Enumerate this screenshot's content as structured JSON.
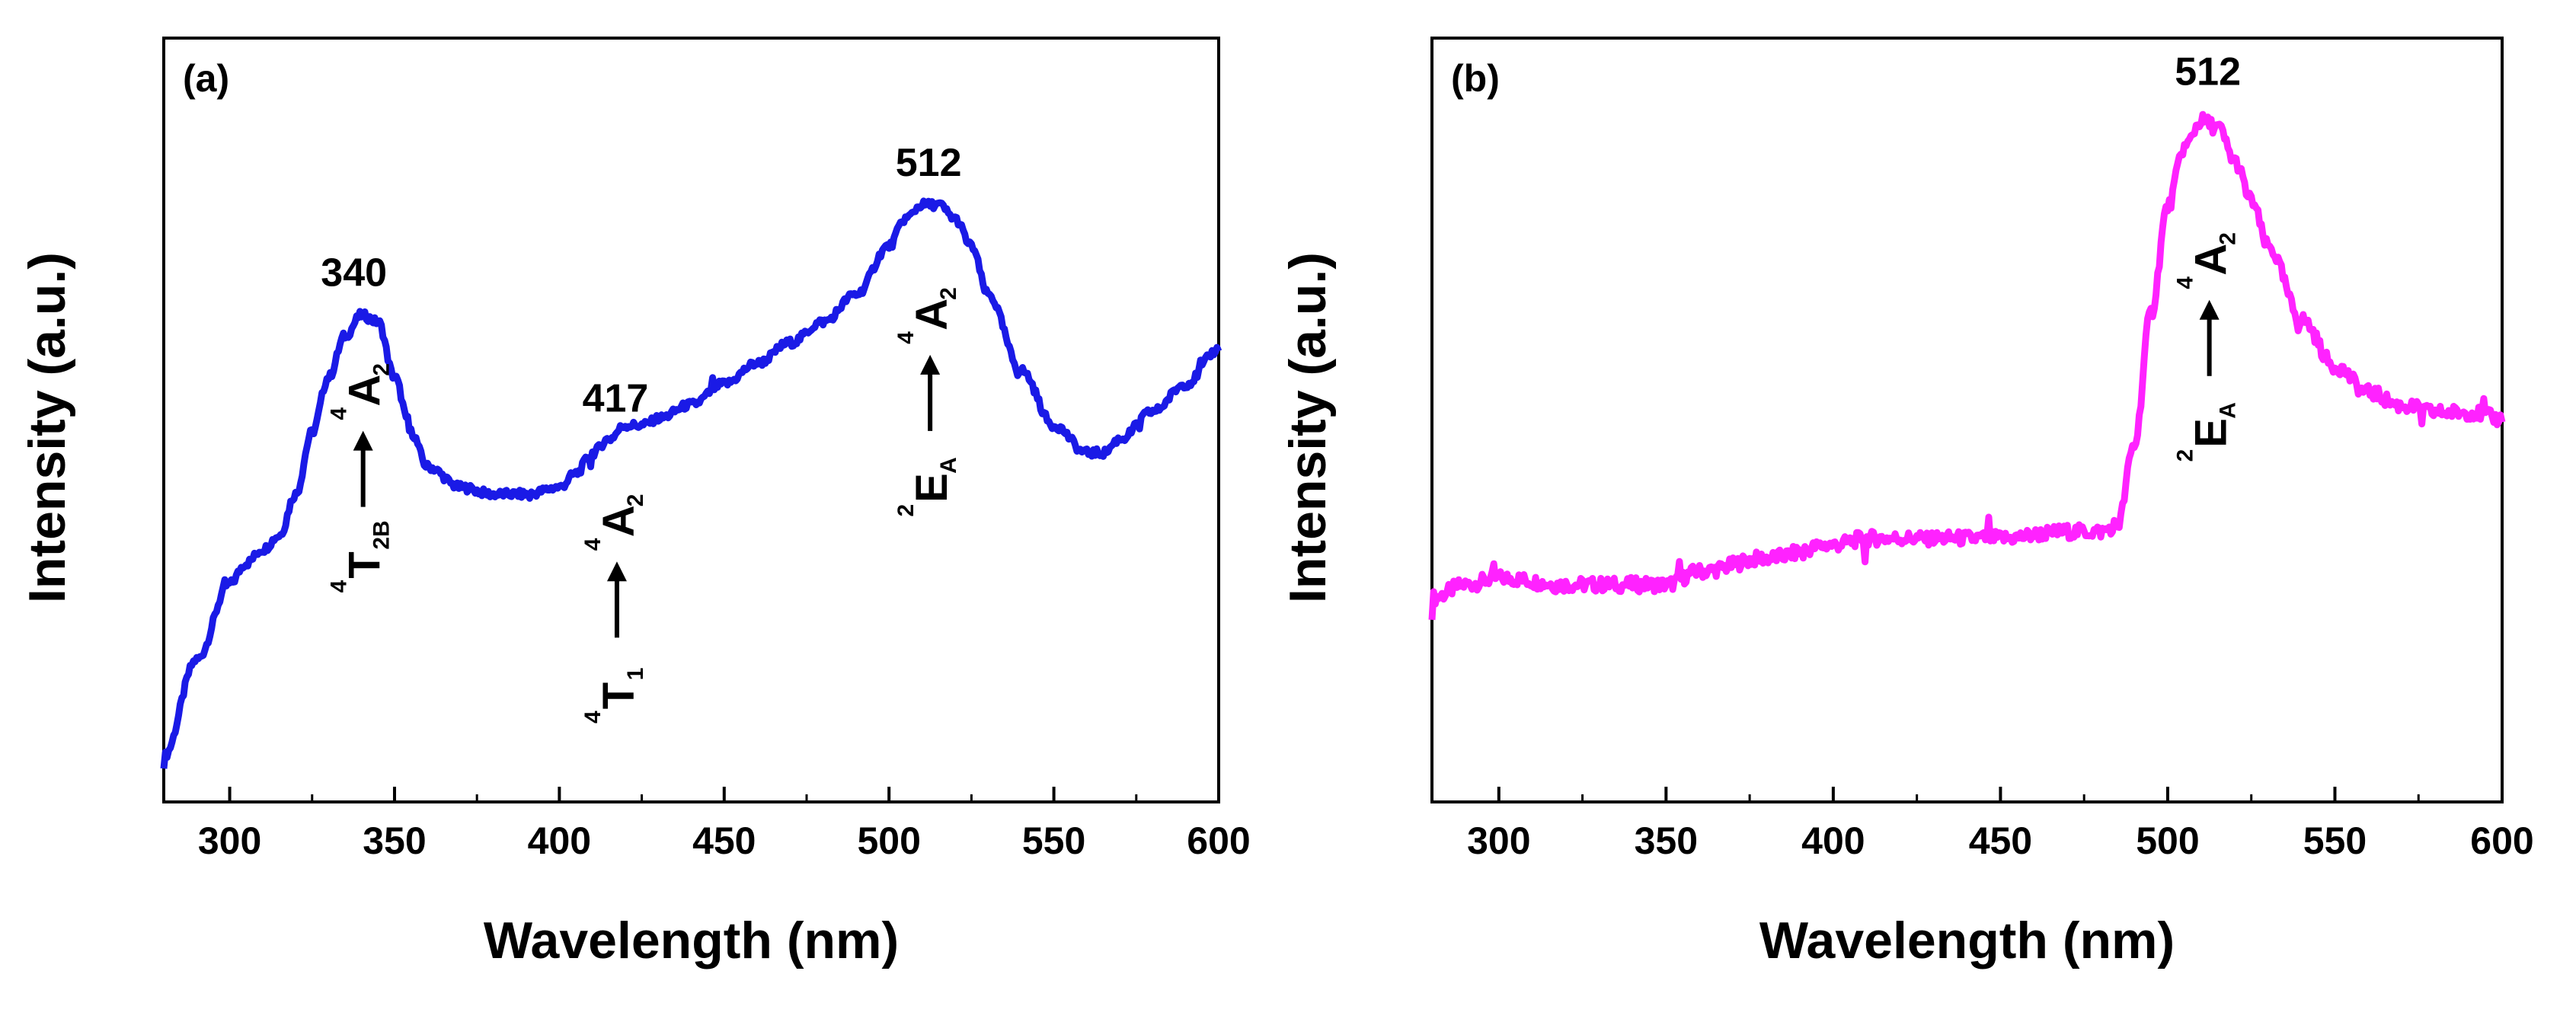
{
  "chart_data": [
    {
      "type": "line",
      "panel_label": "(a)",
      "xlabel": "Wavelength (nm)",
      "ylabel": "Intensity (a.u.)",
      "xlim": [
        280,
        600
      ],
      "ylim": [
        0,
        1.0
      ],
      "xticks": [
        300,
        350,
        400,
        450,
        500,
        550,
        600
      ],
      "yticks_shown": false,
      "series": [
        {
          "name": "spectrum-a",
          "color": "#1a1ae6",
          "x": [
            280,
            290,
            300,
            305,
            310,
            315,
            320,
            325,
            330,
            335,
            340,
            345,
            350,
            355,
            360,
            370,
            380,
            390,
            400,
            405,
            410,
            415,
            420,
            425,
            430,
            440,
            450,
            460,
            470,
            480,
            490,
            500,
            505,
            510,
            515,
            520,
            525,
            530,
            540,
            550,
            560,
            565,
            570,
            580,
            590,
            600
          ],
          "y": [
            0.03,
            0.17,
            0.28,
            0.31,
            0.33,
            0.35,
            0.41,
            0.5,
            0.58,
            0.64,
            0.67,
            0.66,
            0.58,
            0.5,
            0.45,
            0.42,
            0.41,
            0.41,
            0.42,
            0.44,
            0.47,
            0.49,
            0.51,
            0.51,
            0.52,
            0.54,
            0.57,
            0.6,
            0.63,
            0.66,
            0.7,
            0.77,
            0.81,
            0.83,
            0.83,
            0.81,
            0.77,
            0.7,
            0.59,
            0.51,
            0.47,
            0.47,
            0.49,
            0.53,
            0.57,
            0.62
          ]
        }
      ],
      "annotations": [
        {
          "peak": "340",
          "x": 340,
          "transition": {
            "from_base": "T",
            "from_sup": "4",
            "from_sub": "2B",
            "to_base": "A",
            "to_sup": "4",
            "to_sub": "2"
          }
        },
        {
          "peak": "417",
          "x": 417,
          "transition": {
            "from_base": "T",
            "from_sup": "4",
            "from_sub": "1",
            "to_base": "A",
            "to_sup": "4",
            "to_sub": "2"
          }
        },
        {
          "peak": "512",
          "x": 512,
          "transition": {
            "from_base": "E",
            "from_sup": "2",
            "from_sub": "A",
            "to_base": "A",
            "to_sup": "4",
            "to_sub": "2"
          }
        }
      ]
    },
    {
      "type": "line",
      "panel_label": "(b)",
      "xlabel": "Wavelength (nm)",
      "ylabel": "Intensity (a.u.)",
      "xlim": [
        280,
        600
      ],
      "ylim": [
        0,
        1.0
      ],
      "xticks": [
        300,
        350,
        400,
        450,
        500,
        550,
        600
      ],
      "yticks_shown": false,
      "series": [
        {
          "name": "spectrum-b",
          "color": "#ff22ff",
          "x": [
            280,
            290,
            300,
            320,
            340,
            350,
            360,
            380,
            400,
            410,
            420,
            430,
            450,
            470,
            480,
            485,
            490,
            495,
            500,
            505,
            510,
            515,
            520,
            525,
            530,
            540,
            550,
            560,
            570,
            580,
            590,
            600
          ],
          "y": [
            0.27,
            0.29,
            0.3,
            0.29,
            0.29,
            0.29,
            0.31,
            0.33,
            0.35,
            0.36,
            0.36,
            0.36,
            0.36,
            0.37,
            0.37,
            0.38,
            0.5,
            0.7,
            0.86,
            0.95,
            0.99,
            0.98,
            0.93,
            0.87,
            0.8,
            0.69,
            0.62,
            0.58,
            0.56,
            0.55,
            0.55,
            0.54
          ]
        }
      ],
      "annotations": [
        {
          "peak": "512",
          "x": 512,
          "transition": {
            "from_base": "E",
            "from_sup": "2",
            "from_sub": "A",
            "to_base": "A",
            "to_sup": "4",
            "to_sub": "2"
          }
        }
      ]
    }
  ]
}
